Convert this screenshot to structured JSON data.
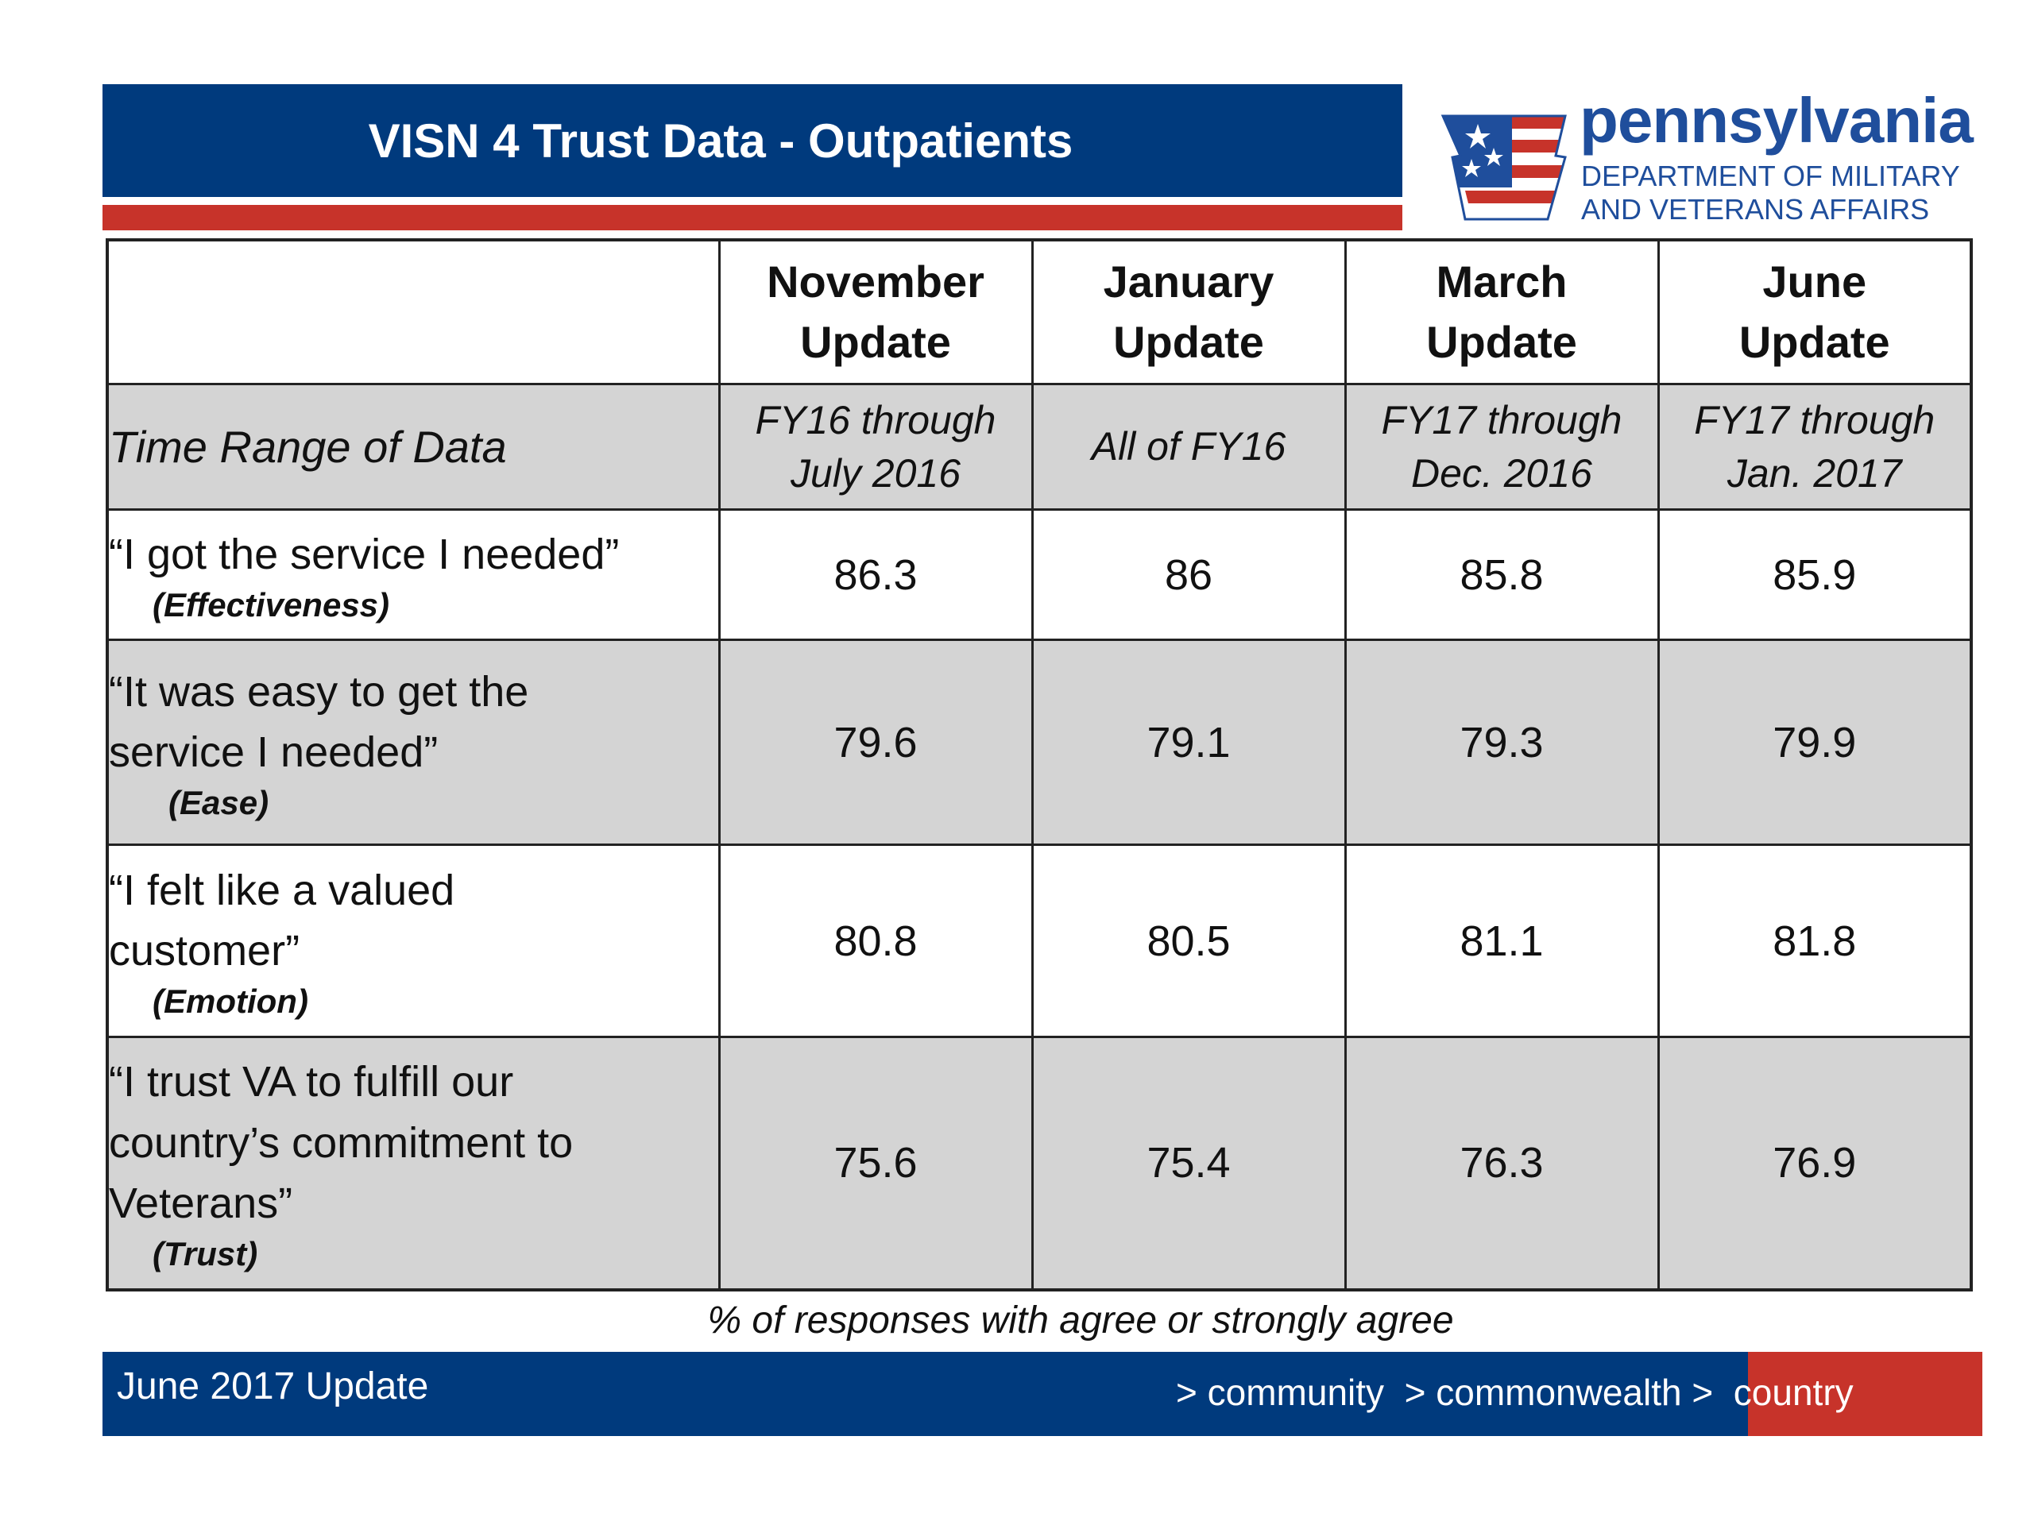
{
  "title": "VISN 4 Trust Data - Outpatients",
  "logo": {
    "wordmark": "pennsylvania",
    "line1": "DEPARTMENT OF MILITARY",
    "line2": "AND VETERANS AFFAIRS"
  },
  "table": {
    "headers": [
      {
        "line1": "November",
        "line2": "Update"
      },
      {
        "line1": "January",
        "line2": "Update"
      },
      {
        "line1": "March",
        "line2": "Update"
      },
      {
        "line1": "June",
        "line2": "Update"
      }
    ],
    "time_range": {
      "label": "Time Range of Data",
      "values": [
        {
          "line1": "FY16 through",
          "line2": "July 2016"
        },
        {
          "line1": "All of FY16",
          "line2": ""
        },
        {
          "line1": "FY17 through",
          "line2": "Dec. 2016"
        },
        {
          "line1": "FY17 through",
          "line2": "Jan. 2017"
        }
      ]
    },
    "rows": [
      {
        "lines": [
          "“I got the service I needed”"
        ],
        "tag": "(Effectiveness)",
        "values": [
          "86.3",
          "86",
          "85.8",
          "85.9"
        ]
      },
      {
        "lines": [
          "“It was easy to get the",
          "service I needed”"
        ],
        "tag": "(Ease)",
        "values": [
          "79.6",
          "79.1",
          "79.3",
          "79.9"
        ]
      },
      {
        "lines": [
          "“I felt like a valued",
          "customer”"
        ],
        "tag": "(Emotion)",
        "values": [
          "80.8",
          "80.5",
          "81.1",
          "81.8"
        ]
      },
      {
        "lines": [
          "“I trust VA to fulfill our",
          "country’s commitment to",
          "Veterans”"
        ],
        "tag": "(Trust)",
        "values": [
          "75.6",
          "75.4",
          "76.3",
          "76.9"
        ]
      }
    ]
  },
  "footnote": "% of responses with agree or strongly agree",
  "footer": {
    "left": "June 2017 Update",
    "right": "> community  > commonwealth >  country"
  },
  "colors": {
    "navy": "#003a7d",
    "red": "#c7332a",
    "row_shade": "#d4d4d4",
    "logo_blue": "#1f4e9c"
  }
}
